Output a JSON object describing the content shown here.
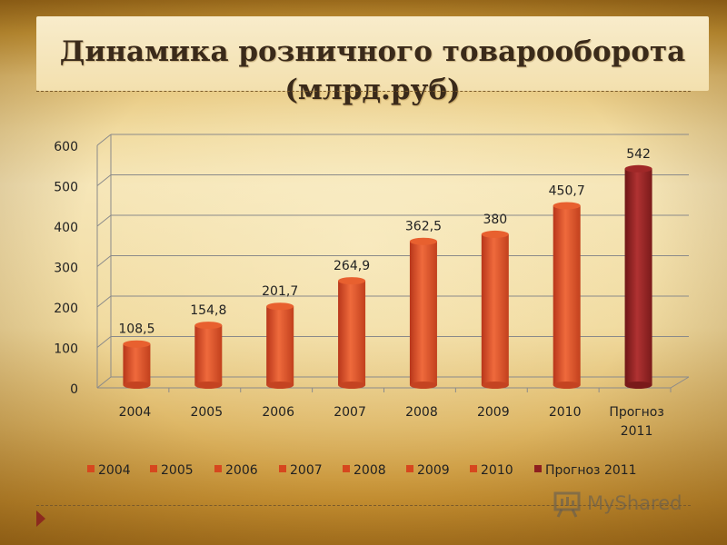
{
  "title_line1": "Динамика розничного товарооборота",
  "title_line2": "(млрд.руб)",
  "watermark": "MyShared",
  "colors": {
    "bar": "#d6471e",
    "bar_forecast": "#8e1f1f",
    "axis": "#8a8a8a",
    "text": "#222222"
  },
  "chart_data": {
    "type": "bar",
    "categories": [
      "2004",
      "2005",
      "2006",
      "2007",
      "2008",
      "2009",
      "2010",
      "Прогноз 2011"
    ],
    "category_tick_lines": [
      [
        "2004"
      ],
      [
        "2005"
      ],
      [
        "2006"
      ],
      [
        "2007"
      ],
      [
        "2008"
      ],
      [
        "2009"
      ],
      [
        "2010"
      ],
      [
        "Прогноз",
        "2011"
      ]
    ],
    "values": [
      108.5,
      154.8,
      201.7,
      264.9,
      362.5,
      380,
      450.7,
      542
    ],
    "data_labels": [
      "108,5",
      "154,8",
      "201,7",
      "264,9",
      "362,5",
      "380",
      "450,7",
      "542"
    ],
    "legend": [
      "2004",
      "2005",
      "2006",
      "2007",
      "2008",
      "2009",
      "2010",
      "Прогноз 2011"
    ],
    "legend_position": "bottom",
    "ylim": [
      0,
      600
    ],
    "yticks": [
      0,
      100,
      200,
      300,
      400,
      500,
      600
    ],
    "grid": true,
    "style": "3d-cylinder",
    "xlabel": "",
    "ylabel": ""
  }
}
